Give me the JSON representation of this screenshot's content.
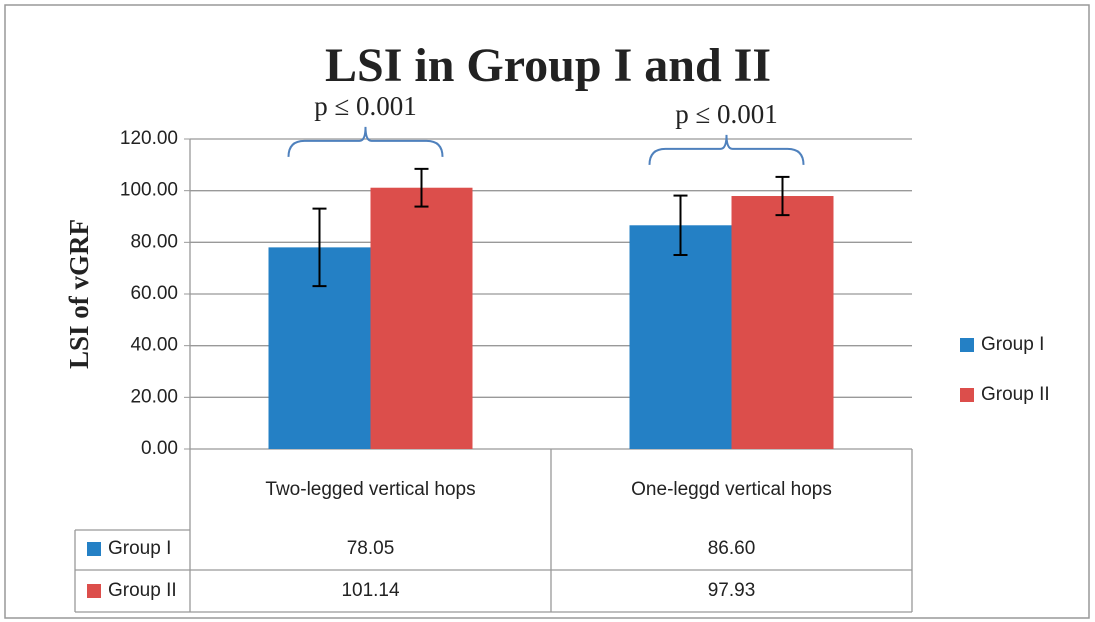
{
  "chart_data": {
    "type": "bar",
    "title": "LSI in Group I and II",
    "y_label": "LSI of vGRF",
    "categories": [
      "Two-legged vertical hops",
      "One-leggd vertical hops"
    ],
    "series": [
      {
        "name": "Group I",
        "color": "#2480c5",
        "values": [
          78.05,
          86.6
        ],
        "value_labels": [
          "78.05",
          "86.60"
        ],
        "errors": [
          15,
          11.5
        ]
      },
      {
        "name": "Group II",
        "color": "#dc4e4b",
        "values": [
          101.14,
          97.93
        ],
        "value_labels": [
          "101.14",
          "97.93"
        ],
        "errors": [
          7.3,
          7.4
        ]
      }
    ],
    "annotations": [
      "p ≤ 0.001",
      "p ≤ 0.001"
    ],
    "ylim": [
      0,
      120
    ],
    "yticks": [
      {
        "value": 0,
        "label": "0.00"
      },
      {
        "value": 20,
        "label": "20.00"
      },
      {
        "value": 40,
        "label": "40.00"
      },
      {
        "value": 60,
        "label": "60.00"
      },
      {
        "value": 80,
        "label": "80.00"
      },
      {
        "value": 100,
        "label": "100.00"
      },
      {
        "value": 120,
        "label": "120.00"
      }
    ],
    "grid": true,
    "legend": "right",
    "data_table": true
  }
}
